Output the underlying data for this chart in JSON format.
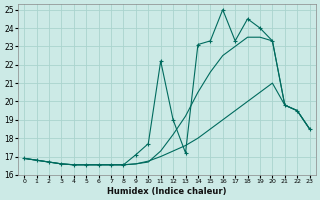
{
  "xlabel": "Humidex (Indice chaleur)",
  "bg_color": "#cceae6",
  "grid_color": "#aad4ce",
  "line_color": "#006b5e",
  "xlim": [
    -0.5,
    23.5
  ],
  "ylim": [
    16,
    25.3
  ],
  "xticks": [
    0,
    1,
    2,
    3,
    4,
    5,
    6,
    7,
    8,
    9,
    10,
    11,
    12,
    13,
    14,
    15,
    16,
    17,
    18,
    19,
    20,
    21,
    22,
    23
  ],
  "yticks": [
    16,
    17,
    18,
    19,
    20,
    21,
    22,
    23,
    24,
    25
  ],
  "series1_x": [
    0,
    1,
    2,
    3,
    4,
    5,
    6,
    7,
    8,
    9,
    10,
    11,
    12,
    13,
    14,
    15,
    16,
    17,
    18,
    19,
    20,
    21,
    22,
    23
  ],
  "series1_y": [
    16.9,
    16.8,
    16.7,
    16.6,
    16.55,
    16.55,
    16.55,
    16.55,
    16.55,
    17.1,
    17.7,
    22.2,
    19.0,
    17.2,
    23.1,
    23.3,
    25.0,
    23.3,
    24.5,
    24.0,
    23.3,
    19.8,
    19.5,
    18.5
  ],
  "series2_x": [
    0,
    1,
    2,
    3,
    4,
    5,
    6,
    7,
    8,
    9,
    10,
    11,
    12,
    13,
    14,
    15,
    16,
    17,
    18,
    19,
    20,
    21,
    22,
    23
  ],
  "series2_y": [
    16.9,
    16.8,
    16.7,
    16.6,
    16.55,
    16.55,
    16.55,
    16.55,
    16.55,
    16.6,
    16.7,
    17.3,
    18.2,
    19.2,
    20.5,
    21.6,
    22.5,
    23.0,
    23.5,
    23.5,
    23.3,
    19.8,
    19.5,
    18.5
  ],
  "series3_x": [
    0,
    1,
    2,
    3,
    4,
    5,
    6,
    7,
    8,
    9,
    10,
    11,
    12,
    13,
    14,
    15,
    16,
    17,
    18,
    19,
    20,
    21,
    22,
    23
  ],
  "series3_y": [
    16.9,
    16.8,
    16.7,
    16.6,
    16.55,
    16.55,
    16.55,
    16.55,
    16.55,
    16.6,
    16.75,
    17.0,
    17.3,
    17.6,
    18.0,
    18.5,
    19.0,
    19.5,
    20.0,
    20.5,
    21.0,
    19.8,
    19.5,
    18.5
  ]
}
